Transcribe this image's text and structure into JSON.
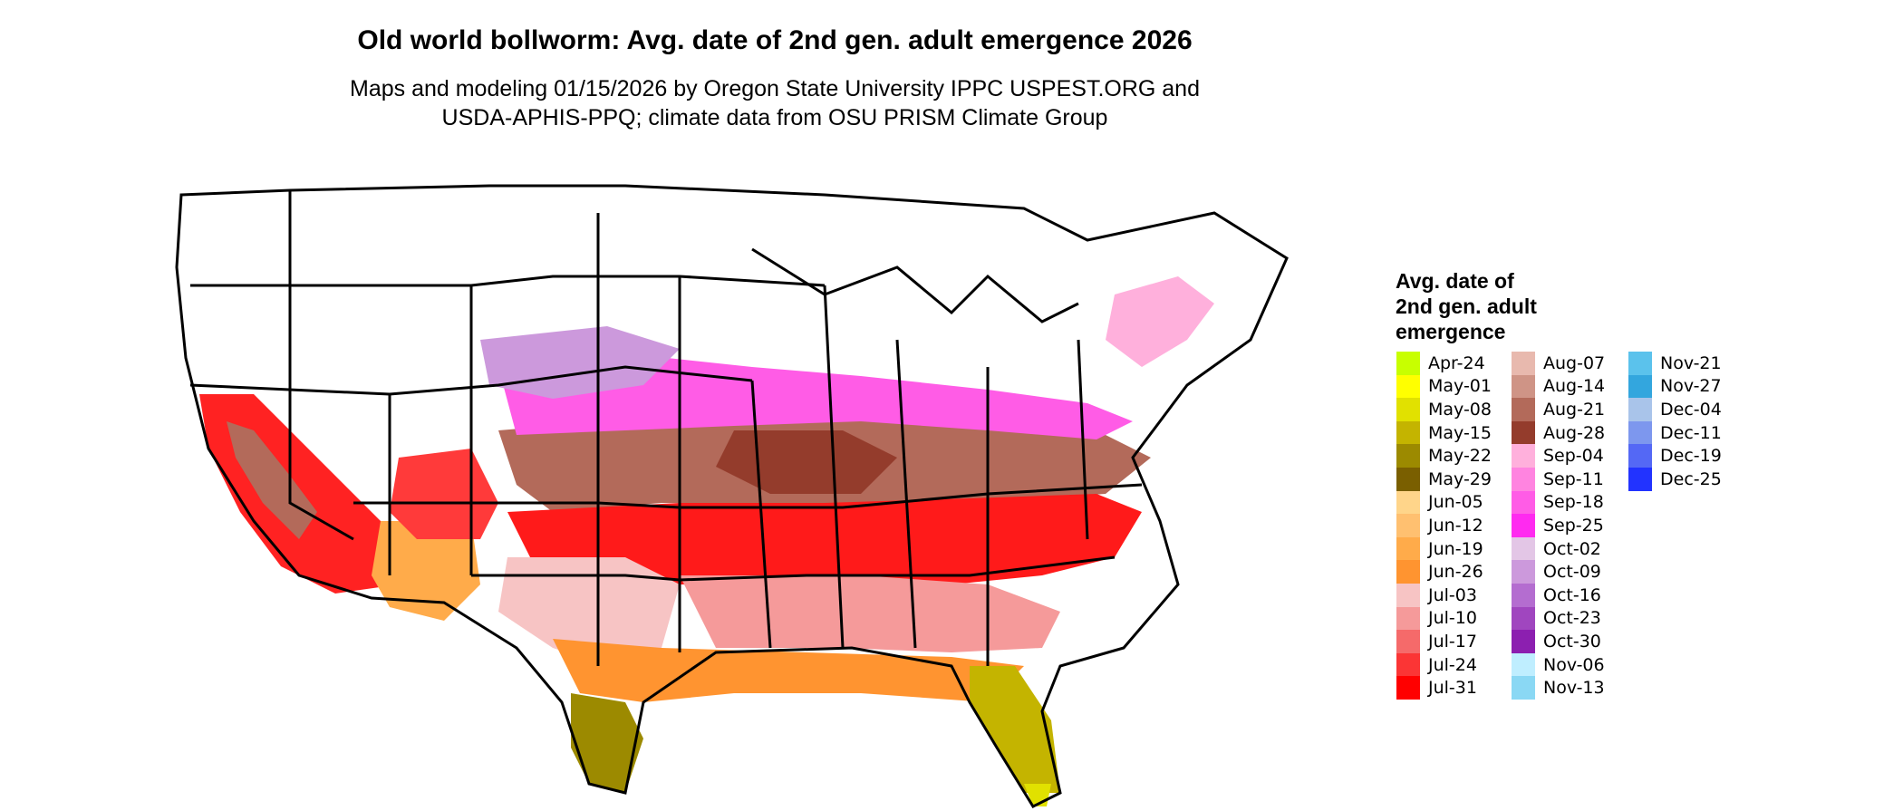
{
  "title": "Old world bollworm: Avg. date of 2nd gen. adult emergence 2026",
  "subtitle_line1": "Maps and modeling 01/15/2026 by Oregon State University IPPC USPEST.ORG and",
  "subtitle_line2": "USDA-APHIS-PPQ; climate data from OSU PRISM Climate Group",
  "legend": {
    "title_lines": [
      "Avg. date of",
      "2nd gen. adult",
      "emergence"
    ],
    "columns": [
      [
        {
          "label": "Apr-24",
          "color": "#c8ff00"
        },
        {
          "label": "May-01",
          "color": "#ffff00"
        },
        {
          "label": "May-08",
          "color": "#e1e100"
        },
        {
          "label": "May-15",
          "color": "#c4b400"
        },
        {
          "label": "May-22",
          "color": "#9c8a00"
        },
        {
          "label": "May-29",
          "color": "#7a5f00"
        },
        {
          "label": "Jun-05",
          "color": "#ffd58a"
        },
        {
          "label": "Jun-12",
          "color": "#ffc070"
        },
        {
          "label": "Jun-19",
          "color": "#ffab4a"
        },
        {
          "label": "Jun-26",
          "color": "#ff9430"
        },
        {
          "label": "Jul-03",
          "color": "#f7c4c4"
        },
        {
          "label": "Jul-10",
          "color": "#f59a9a"
        },
        {
          "label": "Jul-17",
          "color": "#f56a6a"
        },
        {
          "label": "Jul-24",
          "color": "#fb3535"
        },
        {
          "label": "Jul-31",
          "color": "#ff0000"
        }
      ],
      [
        {
          "label": "Aug-07",
          "color": "#e8b9ae"
        },
        {
          "label": "Aug-14",
          "color": "#cf9486"
        },
        {
          "label": "Aug-21",
          "color": "#b36a5a"
        },
        {
          "label": "Aug-28",
          "color": "#943c2c"
        },
        {
          "label": "Sep-04",
          "color": "#ffb0dc"
        },
        {
          "label": "Sep-11",
          "color": "#ff84e0"
        },
        {
          "label": "Sep-18",
          "color": "#ff5ce6"
        },
        {
          "label": "Sep-25",
          "color": "#ff2af0"
        },
        {
          "label": "Oct-02",
          "color": "#e3c6e6"
        },
        {
          "label": "Oct-09",
          "color": "#cc99dc"
        },
        {
          "label": "Oct-16",
          "color": "#b46dd0"
        },
        {
          "label": "Oct-23",
          "color": "#a046bf"
        },
        {
          "label": "Oct-30",
          "color": "#8c1fb0"
        },
        {
          "label": "Nov-06",
          "color": "#bfeeff"
        },
        {
          "label": "Nov-13",
          "color": "#8ad8f4"
        }
      ],
      [
        {
          "label": "Nov-21",
          "color": "#5bc2ec"
        },
        {
          "label": "Nov-27",
          "color": "#33a6de"
        },
        {
          "label": "Dec-04",
          "color": "#a9c4ea"
        },
        {
          "label": "Dec-11",
          "color": "#7d97ee"
        },
        {
          "label": "Dec-19",
          "color": "#5468f5"
        },
        {
          "label": "Dec-25",
          "color": "#2233ff"
        }
      ]
    ]
  },
  "colors": {
    "background": "#ffffff",
    "state_borders": "#000000",
    "no_emergence": "#ffffff"
  }
}
